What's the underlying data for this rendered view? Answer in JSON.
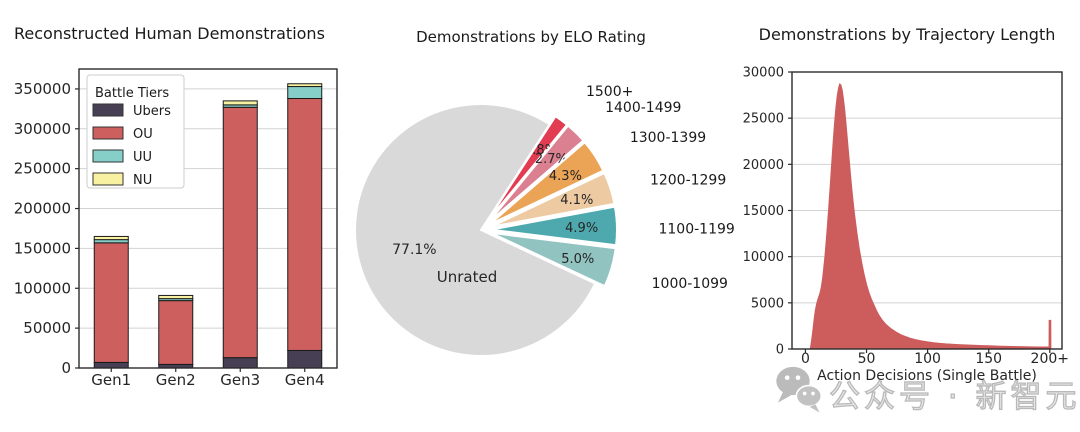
{
  "watermark": {
    "text": "公众号 · 新智元"
  },
  "chart_data": [
    {
      "type": "bar",
      "stacked": true,
      "title": "Reconstructed Human Demonstrations",
      "categories": [
        "Gen1",
        "Gen2",
        "Gen3",
        "Gen4"
      ],
      "series": [
        {
          "name": "Ubers",
          "color": "#474054",
          "values": [
            7000,
            4500,
            13000,
            22000
          ]
        },
        {
          "name": "OU",
          "color": "#cd5f5f",
          "values": [
            150000,
            80000,
            314000,
            316000
          ]
        },
        {
          "name": "UU",
          "color": "#85cfc8",
          "values": [
            4000,
            2500,
            3000,
            15000
          ]
        },
        {
          "name": "NU",
          "color": "#f8f1a2",
          "values": [
            4000,
            4000,
            5000,
            3500
          ]
        }
      ],
      "legend_title": "Battle Tiers",
      "legend_position": "upper left",
      "ylim": [
        0,
        375000
      ],
      "yticks": [
        0,
        50000,
        100000,
        150000,
        200000,
        250000,
        300000,
        350000
      ],
      "grid": true
    },
    {
      "type": "pie",
      "title": "Demonstrations by ELO Rating",
      "start_angle_deg": 57,
      "direction": "clockwise",
      "slices": [
        {
          "label": "1500+",
          "pct": 1.8,
          "color": "#e23c52",
          "exploded": true
        },
        {
          "label": "1400-1499",
          "pct": 2.7,
          "color": "#da8090",
          "exploded": true
        },
        {
          "label": "1300-1399",
          "pct": 4.3,
          "color": "#eba355",
          "exploded": true
        },
        {
          "label": "1200-1299",
          "pct": 4.1,
          "color": "#edcaa2",
          "exploded": true
        },
        {
          "label": "1100-1199",
          "pct": 4.9,
          "color": "#4da9ad",
          "exploded": true
        },
        {
          "label": "1000-1099",
          "pct": 5.0,
          "color": "#91c3c0",
          "exploded": true
        },
        {
          "label": "Unrated",
          "pct": 77.1,
          "color": "#d9d9d9",
          "exploded": false
        }
      ]
    },
    {
      "type": "area",
      "title": "Demonstrations by Trajectory Length",
      "xlabel": "Action Decisions (Single Battle)",
      "color": "#cd5c5c",
      "xlim": [
        -11,
        210
      ],
      "ylim": [
        0,
        30000
      ],
      "xticks": {
        "values": [
          0,
          50,
          100,
          150,
          200
        ],
        "labels": [
          "0",
          "50",
          "100",
          "150",
          "200+"
        ]
      },
      "yticks": [
        0,
        5000,
        10000,
        15000,
        20000,
        25000,
        30000
      ],
      "grid": true,
      "points": [
        [
          0,
          0
        ],
        [
          4,
          0
        ],
        [
          5,
          900
        ],
        [
          6,
          1900
        ],
        [
          7,
          3100
        ],
        [
          8,
          4100
        ],
        [
          9,
          4800
        ],
        [
          10,
          5300
        ],
        [
          11,
          5700
        ],
        [
          12,
          6100
        ],
        [
          13,
          6700
        ],
        [
          14,
          7600
        ],
        [
          15,
          8800
        ],
        [
          16,
          10100
        ],
        [
          17,
          11700
        ],
        [
          18,
          13400
        ],
        [
          19,
          15200
        ],
        [
          20,
          17100
        ],
        [
          21,
          19100
        ],
        [
          22,
          21100
        ],
        [
          23,
          23000
        ],
        [
          24,
          24700
        ],
        [
          25,
          26200
        ],
        [
          26,
          27400
        ],
        [
          27,
          28200
        ],
        [
          28,
          28700
        ],
        [
          29,
          28600
        ],
        [
          30,
          28100
        ],
        [
          31,
          27200
        ],
        [
          32,
          26100
        ],
        [
          33,
          24700
        ],
        [
          34,
          23200
        ],
        [
          35,
          21700
        ],
        [
          36,
          20200
        ],
        [
          37,
          18700
        ],
        [
          38,
          17300
        ],
        [
          39,
          16000
        ],
        [
          40,
          14800
        ],
        [
          42,
          12700
        ],
        [
          44,
          10900
        ],
        [
          46,
          9400
        ],
        [
          48,
          8100
        ],
        [
          50,
          7000
        ],
        [
          52,
          6100
        ],
        [
          54,
          5400
        ],
        [
          56,
          4800
        ],
        [
          58,
          4200
        ],
        [
          60,
          3700
        ],
        [
          63,
          3100
        ],
        [
          66,
          2650
        ],
        [
          70,
          2200
        ],
        [
          74,
          1850
        ],
        [
          78,
          1550
        ],
        [
          82,
          1350
        ],
        [
          86,
          1150
        ],
        [
          90,
          1020
        ],
        [
          95,
          880
        ],
        [
          100,
          770
        ],
        [
          105,
          680
        ],
        [
          110,
          610
        ],
        [
          115,
          550
        ],
        [
          120,
          520
        ],
        [
          125,
          480
        ],
        [
          130,
          450
        ],
        [
          135,
          415
        ],
        [
          140,
          390
        ],
        [
          145,
          370
        ],
        [
          150,
          350
        ],
        [
          155,
          325
        ],
        [
          160,
          300
        ],
        [
          165,
          285
        ],
        [
          170,
          270
        ],
        [
          175,
          255
        ],
        [
          180,
          240
        ],
        [
          185,
          230
        ],
        [
          190,
          220
        ],
        [
          195,
          215
        ],
        [
          198,
          210
        ],
        [
          199.4,
          205
        ],
        [
          199.5,
          3100
        ],
        [
          200.8,
          3100
        ],
        [
          200.9,
          0
        ]
      ]
    }
  ]
}
